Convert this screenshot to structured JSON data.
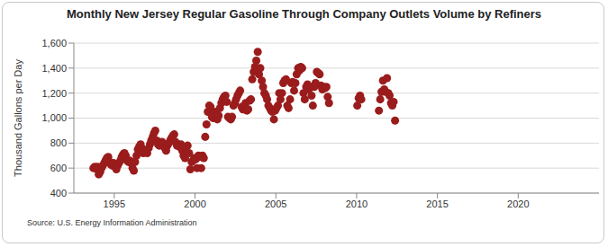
{
  "chart_data": {
    "type": "scatter",
    "title": "Monthly New Jersey Regular Gasoline Through Company Outlets Volume by Refiners",
    "y_label": "Thousand Gallons per Day",
    "source": "Source: U.S. Energy Information Administration",
    "color": "#9b1c1c",
    "marker": "circle",
    "grid": true,
    "xlim": [
      1992.5,
      2025
    ],
    "xticks": [
      1995,
      2000,
      2005,
      2010,
      2015,
      2020
    ],
    "ylim": [
      400,
      1600
    ],
    "yticks": [
      400,
      600,
      800,
      {
        "value": 1000,
        "label": "1,000"
      },
      {
        "value": 1200,
        "label": "1,200"
      },
      {
        "value": 1400,
        "label": "1,400"
      },
      {
        "value": 1600,
        "label": "1,600"
      }
    ],
    "x": [
      1993.71,
      1993.79,
      1993.88,
      1993.96,
      1994.04,
      1994.13,
      1994.21,
      1994.29,
      1994.38,
      1994.46,
      1994.54,
      1994.63,
      1994.71,
      1994.79,
      1994.88,
      1994.96,
      1995.04,
      1995.13,
      1995.21,
      1995.29,
      1995.38,
      1995.46,
      1995.54,
      1995.63,
      1995.71,
      1995.79,
      1995.88,
      1995.96,
      1996.04,
      1996.13,
      1996.21,
      1996.29,
      1996.38,
      1996.46,
      1996.54,
      1996.63,
      1996.71,
      1996.79,
      1996.88,
      1996.96,
      1997.04,
      1997.13,
      1997.21,
      1997.29,
      1997.38,
      1997.46,
      1997.54,
      1997.63,
      1997.71,
      1997.79,
      1997.88,
      1997.96,
      1998.04,
      1998.13,
      1998.21,
      1998.29,
      1998.38,
      1998.46,
      1998.54,
      1998.63,
      1998.71,
      1998.79,
      1998.88,
      1998.96,
      1999.04,
      1999.13,
      1999.21,
      1999.29,
      1999.38,
      1999.46,
      1999.54,
      1999.63,
      1999.71,
      1999.79,
      1999.88,
      1999.96,
      2000.04,
      2000.13,
      2000.21,
      2000.29,
      2000.38,
      2000.46,
      2000.54,
      2000.63,
      2000.71,
      2000.79,
      2000.88,
      2000.96,
      2001.04,
      2001.13,
      2001.21,
      2001.29,
      2001.38,
      2001.46,
      2001.54,
      2001.63,
      2001.71,
      2001.79,
      2001.88,
      2001.96,
      2002.04,
      2002.13,
      2002.21,
      2002.29,
      2002.38,
      2002.46,
      2002.54,
      2002.63,
      2002.71,
      2002.79,
      2002.88,
      2002.96,
      2003.04,
      2003.13,
      2003.21,
      2003.29,
      2003.38,
      2003.46,
      2003.54,
      2003.63,
      2003.71,
      2003.79,
      2003.88,
      2003.96,
      2004.04,
      2004.13,
      2004.21,
      2004.29,
      2004.38,
      2004.46,
      2004.54,
      2004.63,
      2004.71,
      2004.79,
      2004.88,
      2004.96,
      2005.04,
      2005.13,
      2005.21,
      2005.29,
      2005.38,
      2005.46,
      2005.54,
      2005.63,
      2005.71,
      2005.79,
      2005.88,
      2005.96,
      2006.04,
      2006.13,
      2006.21,
      2006.29,
      2006.38,
      2006.46,
      2006.54,
      2006.63,
      2006.71,
      2006.79,
      2006.88,
      2006.96,
      2007.04,
      2007.13,
      2007.21,
      2007.29,
      2007.38,
      2007.46,
      2007.54,
      2007.63,
      2007.71,
      2007.79,
      2007.88,
      2007.96,
      2008.04,
      2008.13,
      2008.21,
      2008.29,
      2010.04,
      2010.13,
      2010.21,
      2010.29,
      2011.38,
      2011.46,
      2011.54,
      2011.63,
      2011.71,
      2011.79,
      2011.88,
      2011.96,
      2012.04,
      2012.13,
      2012.21,
      2012.29,
      2012.38
    ],
    "values": [
      600,
      610,
      595,
      610,
      550,
      570,
      600,
      620,
      640,
      660,
      680,
      690,
      650,
      630,
      620,
      640,
      610,
      590,
      620,
      640,
      660,
      690,
      710,
      720,
      700,
      660,
      650,
      660,
      640,
      600,
      580,
      650,
      700,
      750,
      770,
      790,
      760,
      720,
      730,
      740,
      720,
      760,
      790,
      820,
      850,
      880,
      900,
      820,
      790,
      780,
      800,
      810,
      790,
      760,
      740,
      780,
      800,
      820,
      840,
      860,
      870,
      810,
      780,
      790,
      770,
      790,
      740,
      700,
      680,
      720,
      780,
      720,
      590,
      650,
      660,
      680,
      670,
      600,
      700,
      690,
      600,
      700,
      680,
      850,
      950,
      1050,
      1100,
      1090,
      1010,
      1000,
      1040,
      1050,
      990,
      1020,
      1080,
      1120,
      1150,
      1170,
      1180,
      1130,
      1010,
      1000,
      990,
      1010,
      1100,
      1120,
      1150,
      1180,
      1200,
      1220,
      1090,
      1070,
      1100,
      1120,
      1060,
      1070,
      1140,
      1150,
      1310,
      1370,
      1410,
      1460,
      1530,
      1350,
      1400,
      1300,
      1250,
      1200,
      1180,
      1150,
      1100,
      1080,
      1060,
      1050,
      990,
      1060,
      1080,
      1100,
      1200,
      1150,
      1200,
      1280,
      1300,
      1310,
      1100,
      1080,
      1150,
      1280,
      1290,
      1220,
      1280,
      1350,
      1400,
      1380,
      1410,
      1400,
      1200,
      1150,
      1250,
      1270,
      1230,
      1250,
      1180,
      1100,
      1250,
      1280,
      1370,
      1360,
      1350,
      1260,
      1230,
      1250,
      1240,
      1250,
      1170,
      1120,
      1100,
      1160,
      1180,
      1150,
      1060,
      1150,
      1210,
      1300,
      1230,
      1210,
      1320,
      1200,
      1180,
      1120,
      1100,
      1130,
      980
    ]
  }
}
